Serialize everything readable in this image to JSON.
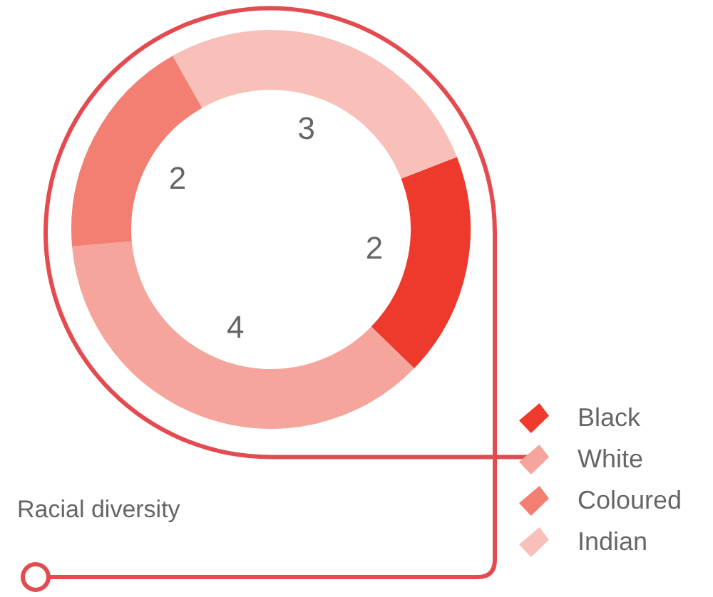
{
  "chart_data": {
    "type": "donut",
    "title": "Racial diversity",
    "categories": [
      "Black",
      "White",
      "Coloured",
      "Indian"
    ],
    "values": [
      2,
      4,
      2,
      3
    ],
    "colors": [
      "#ee3a2c",
      "#f5a59b",
      "#f37f73",
      "#f8c0b9"
    ],
    "data_labels": true,
    "legend": "bottom right"
  }
}
